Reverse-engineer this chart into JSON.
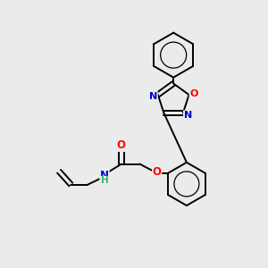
{
  "background_color": "#ebebeb",
  "bond_color": "#000000",
  "atom_colors": {
    "O": "#ff0000",
    "N": "#0000cd",
    "H": "#3cb371",
    "C": "#000000"
  },
  "figsize": [
    3.0,
    3.0
  ],
  "dpi": 100
}
